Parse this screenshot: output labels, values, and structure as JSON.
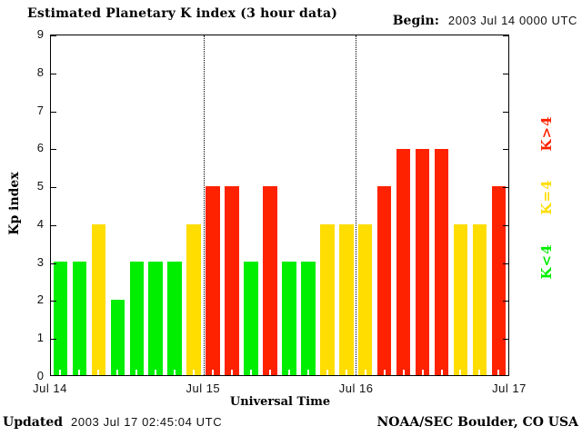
{
  "title": "Estimated Planetary K index (3 hour data)",
  "begin": {
    "label": "Begin:",
    "value": "2003 Jul 14 0000 UTC"
  },
  "footer": {
    "updated_label": "Updated",
    "updated_value": "2003 Jul 17 02:45:04 UTC",
    "credit": "NOAA/SEC Boulder, CO USA"
  },
  "legend": [
    {
      "label": "K>4",
      "color": "#ff2200"
    },
    {
      "label": "K=4",
      "color": "#ffdd00"
    },
    {
      "label": "K<4",
      "color": "#00ee00"
    }
  ],
  "chart_data": {
    "type": "bar",
    "title": "Estimated Planetary K index (3 hour data)",
    "xlabel": "Universal Time",
    "ylabel": "Kp index",
    "ylim": [
      0,
      9
    ],
    "y_ticks": [
      0,
      1,
      2,
      3,
      4,
      5,
      6,
      7,
      8,
      9
    ],
    "x_tick_labels": [
      "Jul 14",
      "Jul 15",
      "Jul 16",
      "Jul 17"
    ],
    "divider_positions": [
      0.33333,
      0.66667
    ],
    "values": [
      3,
      3,
      4,
      2,
      3,
      3,
      3,
      4,
      5,
      5,
      3,
      5,
      3,
      3,
      4,
      4,
      4,
      5,
      6,
      6,
      6,
      4,
      4,
      5
    ],
    "color_rules": {
      "below_4": "#00ee00",
      "equal_4": "#ffdd00",
      "above_4": "#ff2200"
    },
    "grid": false,
    "legend_position": "right-rotated"
  }
}
